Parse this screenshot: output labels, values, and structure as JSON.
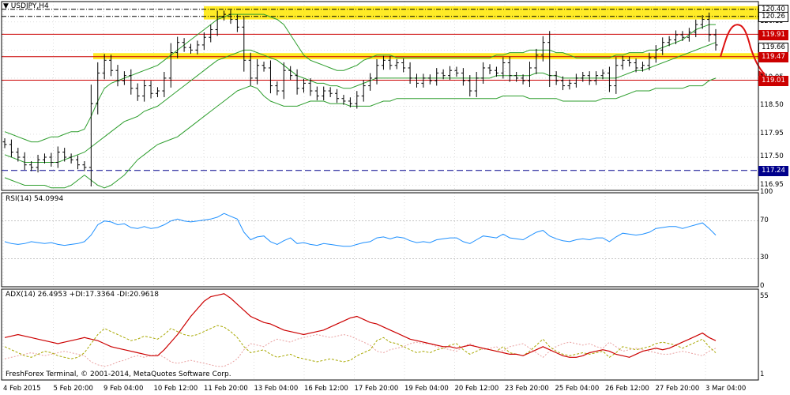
{
  "window": {
    "title": "USDJPY,H4"
  },
  "footer": {
    "copyright": "FreshForex Terminal, © 2001-2014, MetaQuotes Software Corp."
  },
  "colors": {
    "background": "#ffffff",
    "grid": "#c8c8c8",
    "bars": "#000000",
    "bollinger": "#2e9e2e",
    "rsi": "#1e90ff",
    "adx": "#cc0000",
    "plus_di": "#a8a800",
    "minus_di": "#e9a0a0",
    "zone": "#ffe800",
    "resistance": "#cc0000",
    "support_dashed": "#00008b",
    "arrow": "#dd1111"
  },
  "price_labels": [
    {
      "value": "120.40",
      "style": "plain"
    },
    {
      "value": "120.26",
      "style": "plain"
    },
    {
      "value": "119.91",
      "style": "red"
    },
    {
      "value": "119.66",
      "style": "current"
    },
    {
      "value": "119.47",
      "style": "red"
    },
    {
      "value": "119.01",
      "style": "red"
    },
    {
      "value": "117.24",
      "style": "blue"
    }
  ],
  "chart_data": [
    {
      "type": "line",
      "title": "USDJPY,H4",
      "subtype": "ohlc-bars",
      "timeframe": "H4",
      "y_ticks": [
        "120.15",
        "119.60",
        "119.05",
        "118.50",
        "117.95",
        "117.50",
        "116.95"
      ],
      "ylim": [
        116.85,
        120.55
      ],
      "x_ticks": [
        "4 Feb 2015",
        "5 Feb 20:00",
        "9 Feb 04:00",
        "10 Feb 12:00",
        "11 Feb 20:00",
        "13 Feb 04:00",
        "16 Feb 12:00",
        "17 Feb 20:00",
        "19 Feb 04:00",
        "20 Feb 12:00",
        "23 Feb 20:00",
        "25 Feb 04:00",
        "26 Feb 12:00",
        "27 Feb 20:00",
        "3 Mar 04:00"
      ],
      "close_values": [
        117.75,
        117.6,
        117.5,
        117.35,
        117.3,
        117.45,
        117.5,
        117.4,
        117.6,
        117.5,
        117.45,
        117.35,
        117.3,
        118.55,
        119.15,
        119.4,
        119.2,
        119.0,
        119.1,
        118.85,
        118.7,
        118.9,
        118.75,
        118.8,
        119.05,
        119.55,
        119.75,
        119.65,
        119.6,
        119.7,
        119.85,
        120.0,
        120.25,
        120.3,
        120.2,
        120.05,
        119.4,
        119.05,
        119.3,
        119.25,
        118.9,
        118.8,
        119.2,
        119.1,
        118.85,
        118.95,
        118.8,
        118.7,
        118.8,
        118.75,
        118.65,
        118.6,
        118.55,
        118.7,
        118.9,
        119.05,
        119.3,
        119.4,
        119.3,
        119.35,
        119.25,
        119.05,
        118.95,
        119.05,
        119.0,
        119.15,
        119.1,
        119.2,
        119.15,
        119.0,
        118.8,
        119.05,
        119.25,
        119.2,
        119.15,
        119.35,
        119.1,
        119.05,
        119.0,
        119.25,
        119.5,
        119.75,
        119.1,
        119.0,
        118.9,
        118.95,
        119.05,
        119.1,
        119.0,
        119.1,
        119.15,
        118.9,
        119.3,
        119.4,
        119.35,
        119.25,
        119.3,
        119.45,
        119.6,
        119.75,
        119.8,
        119.9,
        119.85,
        119.95,
        120.1,
        120.2,
        119.9,
        119.7
      ],
      "bollinger_upper": [
        118.0,
        117.95,
        117.9,
        117.85,
        117.8,
        117.8,
        117.85,
        117.9,
        117.9,
        117.95,
        118.0,
        118.0,
        118.05,
        118.3,
        118.6,
        118.85,
        118.95,
        119.0,
        119.05,
        119.1,
        119.15,
        119.2,
        119.25,
        119.3,
        119.4,
        119.5,
        119.6,
        119.7,
        119.8,
        119.9,
        120.0,
        120.1,
        120.2,
        120.25,
        120.3,
        120.3,
        120.3,
        120.3,
        120.3,
        120.3,
        120.25,
        120.2,
        120.1,
        119.9,
        119.7,
        119.5,
        119.4,
        119.35,
        119.3,
        119.25,
        119.2,
        119.2,
        119.25,
        119.3,
        119.4,
        119.45,
        119.5,
        119.5,
        119.5,
        119.45,
        119.45,
        119.45,
        119.45,
        119.45,
        119.45,
        119.45,
        119.45,
        119.45,
        119.45,
        119.45,
        119.45,
        119.45,
        119.45,
        119.45,
        119.5,
        119.5,
        119.55,
        119.55,
        119.55,
        119.6,
        119.6,
        119.6,
        119.6,
        119.55,
        119.55,
        119.5,
        119.45,
        119.45,
        119.45,
        119.45,
        119.45,
        119.45,
        119.5,
        119.5,
        119.55,
        119.55,
        119.55,
        119.6,
        119.6,
        119.65,
        119.7,
        119.75,
        119.8,
        119.9,
        120.0,
        120.05,
        120.1,
        120.1
      ],
      "bollinger_middle": [
        117.55,
        117.5,
        117.45,
        117.4,
        117.4,
        117.4,
        117.4,
        117.4,
        117.4,
        117.45,
        117.5,
        117.55,
        117.6,
        117.7,
        117.8,
        117.9,
        118.0,
        118.1,
        118.2,
        118.25,
        118.3,
        118.4,
        118.45,
        118.5,
        118.6,
        118.7,
        118.8,
        118.9,
        119.0,
        119.1,
        119.2,
        119.3,
        119.4,
        119.45,
        119.5,
        119.55,
        119.6,
        119.6,
        119.55,
        119.5,
        119.45,
        119.4,
        119.3,
        119.2,
        119.1,
        119.05,
        119.0,
        118.95,
        118.95,
        118.9,
        118.9,
        118.85,
        118.85,
        118.9,
        118.95,
        119.0,
        119.05,
        119.05,
        119.05,
        119.05,
        119.05,
        119.05,
        119.05,
        119.05,
        119.05,
        119.05,
        119.05,
        119.05,
        119.05,
        119.05,
        119.05,
        119.05,
        119.05,
        119.05,
        119.1,
        119.1,
        119.1,
        119.1,
        119.1,
        119.1,
        119.15,
        119.15,
        119.1,
        119.1,
        119.05,
        119.05,
        119.05,
        119.05,
        119.05,
        119.05,
        119.05,
        119.05,
        119.05,
        119.1,
        119.15,
        119.2,
        119.2,
        119.25,
        119.3,
        119.35,
        119.4,
        119.45,
        119.5,
        119.55,
        119.6,
        119.65,
        119.7,
        119.75
      ],
      "bollinger_lower": [
        117.1,
        117.05,
        117.0,
        116.95,
        116.95,
        116.95,
        116.95,
        116.9,
        116.9,
        116.9,
        116.95,
        117.05,
        117.15,
        117.05,
        116.95,
        116.9,
        116.95,
        117.05,
        117.15,
        117.3,
        117.45,
        117.55,
        117.65,
        117.75,
        117.8,
        117.85,
        117.9,
        118.0,
        118.1,
        118.2,
        118.3,
        118.4,
        118.5,
        118.6,
        118.7,
        118.8,
        118.85,
        118.9,
        118.85,
        118.7,
        118.6,
        118.55,
        118.5,
        118.5,
        118.5,
        118.55,
        118.6,
        118.6,
        118.6,
        118.55,
        118.55,
        118.55,
        118.5,
        118.5,
        118.5,
        118.5,
        118.55,
        118.6,
        118.6,
        118.65,
        118.65,
        118.65,
        118.65,
        118.65,
        118.65,
        118.65,
        118.65,
        118.65,
        118.65,
        118.65,
        118.65,
        118.65,
        118.65,
        118.65,
        118.65,
        118.7,
        118.7,
        118.7,
        118.7,
        118.65,
        118.65,
        118.65,
        118.65,
        118.65,
        118.6,
        118.6,
        118.6,
        118.6,
        118.6,
        118.6,
        118.65,
        118.65,
        118.65,
        118.7,
        118.75,
        118.8,
        118.8,
        118.8,
        118.85,
        118.85,
        118.85,
        118.85,
        118.85,
        118.9,
        118.9,
        118.9,
        119.0,
        119.05
      ],
      "horizontal_levels": [
        {
          "value": 120.4,
          "style": "dash-dot"
        },
        {
          "value": 120.26,
          "style": "dash-dot"
        },
        {
          "value": 119.91,
          "style": "solid-red"
        },
        {
          "value": 119.47,
          "style": "solid-red"
        },
        {
          "value": 119.01,
          "style": "solid-red"
        },
        {
          "value": 117.24,
          "style": "dashed-blue"
        }
      ],
      "zones": [
        {
          "from": 120.2,
          "to": 120.46
        },
        {
          "from": 119.42,
          "to": 119.54
        }
      ]
    },
    {
      "type": "line",
      "title": "RSI(14) 54.0994",
      "ylim": [
        0,
        100
      ],
      "y_ticks": [
        "100",
        "70",
        "30",
        "0"
      ],
      "levels": [
        70,
        30
      ],
      "series": [
        {
          "name": "RSI(14)",
          "value": "54.0994",
          "values": [
            48,
            46,
            45,
            46,
            48,
            47,
            46,
            47,
            45,
            44,
            45,
            46,
            48,
            55,
            66,
            70,
            69,
            66,
            67,
            63,
            62,
            64,
            62,
            63,
            66,
            70,
            72,
            70,
            69,
            70,
            71,
            72,
            74,
            78,
            75,
            72,
            58,
            50,
            53,
            54,
            48,
            45,
            49,
            52,
            46,
            47,
            45,
            44,
            46,
            45,
            44,
            43,
            43,
            45,
            47,
            48,
            52,
            53,
            51,
            53,
            52,
            49,
            47,
            48,
            47,
            50,
            51,
            52,
            52,
            48,
            46,
            50,
            54,
            53,
            52,
            56,
            52,
            51,
            50,
            54,
            58,
            60,
            54,
            51,
            49,
            48,
            50,
            51,
            50,
            52,
            52,
            48,
            53,
            57,
            56,
            55,
            56,
            58,
            62,
            63,
            64,
            64,
            62,
            64,
            66,
            68,
            62,
            55
          ]
        }
      ]
    },
    {
      "type": "line",
      "title": "ADX(14) 26.4953 +DI:17.3364 -DI:20.9618",
      "ylim": [
        0,
        60
      ],
      "y_ticks": [
        "55",
        "1"
      ],
      "series": [
        {
          "name": "ADX(14)",
          "value": "26.4953",
          "values": [
            28,
            29,
            30,
            29,
            28,
            27,
            26,
            25,
            24,
            25,
            26,
            27,
            28,
            27,
            26,
            24,
            22,
            21,
            20,
            19,
            18,
            17,
            16,
            16,
            20,
            25,
            30,
            36,
            42,
            47,
            52,
            55,
            56,
            57,
            54,
            50,
            46,
            42,
            40,
            38,
            37,
            35,
            33,
            32,
            31,
            30,
            31,
            32,
            33,
            35,
            37,
            39,
            41,
            42,
            40,
            38,
            37,
            35,
            33,
            31,
            29,
            27,
            26,
            25,
            24,
            23,
            22,
            22,
            21,
            22,
            23,
            22,
            21,
            20,
            19,
            18,
            17,
            17,
            16,
            18,
            20,
            22,
            20,
            18,
            16,
            15,
            15,
            16,
            18,
            19,
            20,
            19,
            17,
            16,
            15,
            17,
            19,
            20,
            21,
            20,
            21,
            23,
            25,
            27,
            29,
            31,
            28,
            26
          ]
        },
        {
          "name": "+DI",
          "value": "17.3364",
          "values": [
            22,
            20,
            18,
            16,
            15,
            17,
            19,
            18,
            16,
            15,
            14,
            15,
            18,
            24,
            30,
            34,
            32,
            30,
            28,
            26,
            27,
            29,
            28,
            27,
            30,
            34,
            32,
            30,
            29,
            30,
            32,
            34,
            36,
            35,
            32,
            28,
            22,
            18,
            19,
            20,
            17,
            15,
            16,
            17,
            15,
            14,
            13,
            12,
            13,
            14,
            13,
            12,
            13,
            16,
            18,
            20,
            26,
            28,
            25,
            24,
            22,
            20,
            18,
            19,
            18,
            20,
            21,
            23,
            24,
            20,
            17,
            19,
            21,
            20,
            19,
            22,
            18,
            17,
            16,
            19,
            23,
            27,
            22,
            19,
            17,
            16,
            17,
            18,
            17,
            18,
            19,
            15,
            18,
            22,
            21,
            20,
            21,
            22,
            24,
            25,
            24,
            23,
            21,
            23,
            25,
            27,
            22,
            18
          ]
        },
        {
          "name": "-DI",
          "value": "20.9618",
          "values": [
            14,
            15,
            16,
            17,
            18,
            17,
            16,
            17,
            18,
            19,
            18,
            17,
            16,
            12,
            10,
            9,
            10,
            12,
            13,
            15,
            16,
            15,
            16,
            17,
            15,
            12,
            11,
            12,
            13,
            12,
            11,
            10,
            9,
            9,
            11,
            14,
            20,
            24,
            23,
            22,
            25,
            27,
            26,
            25,
            27,
            28,
            29,
            30,
            29,
            28,
            29,
            30,
            29,
            27,
            25,
            23,
            19,
            18,
            20,
            21,
            22,
            24,
            25,
            24,
            24,
            22,
            21,
            20,
            19,
            22,
            24,
            22,
            20,
            21,
            22,
            19,
            22,
            23,
            24,
            21,
            18,
            15,
            19,
            22,
            24,
            25,
            24,
            23,
            24,
            22,
            21,
            25,
            22,
            19,
            20,
            21,
            20,
            19,
            18,
            17,
            17,
            18,
            19,
            18,
            17,
            16,
            19,
            21
          ]
        }
      ]
    }
  ]
}
